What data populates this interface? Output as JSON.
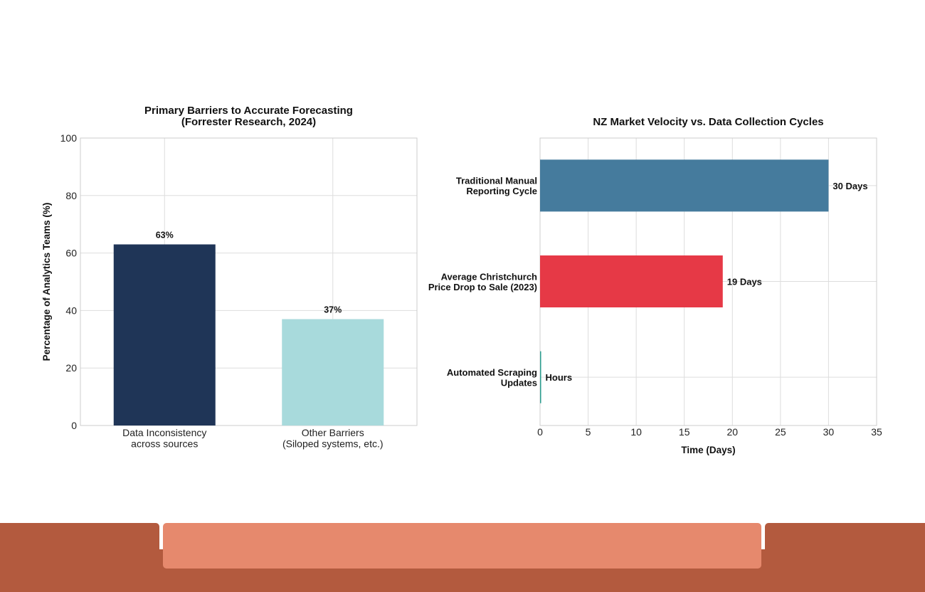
{
  "colors": {
    "bar_dark_navy": "#1f3557",
    "bar_light_teal": "#a8dadc",
    "bar_steel_blue": "#457b9d",
    "bar_red": "#e63946",
    "bar_hours": "#2a9d8f",
    "footer_dark": "#b35a3e",
    "footer_light": "#e6896d"
  },
  "chart_data": [
    {
      "type": "bar",
      "title": "Primary Barriers to Accurate Forecasting",
      "subtitle": "(Forrester Research, 2024)",
      "xlabel": "",
      "ylabel": "Percentage of Analytics Teams (%)",
      "categories": [
        [
          "Data Inconsistency",
          "across sources"
        ],
        [
          "Other Barriers",
          "(Siloped systems, etc.)"
        ]
      ],
      "values": [
        63,
        37
      ],
      "data_labels": [
        "63%",
        "37%"
      ],
      "ylim": [
        0,
        100
      ],
      "yticks": [
        0,
        20,
        40,
        60,
        80,
        100
      ],
      "grid": true
    },
    {
      "type": "bar",
      "orientation": "horizontal",
      "title": "NZ Market Velocity vs. Data Collection Cycles",
      "xlabel": "Time (Days)",
      "ylabel": "",
      "categories": [
        [
          "Traditional Manual",
          "Reporting Cycle"
        ],
        [
          "Average Christchurch",
          "Price Drop to Sale (2023)"
        ],
        [
          "Automated Scraping",
          "Updates"
        ]
      ],
      "values": [
        30,
        19,
        0.1
      ],
      "data_labels": [
        "30 Days",
        "19 Days",
        "Hours"
      ],
      "xlim": [
        0,
        35
      ],
      "xticks": [
        0,
        5,
        10,
        15,
        20,
        25,
        30,
        35
      ],
      "grid": true
    }
  ]
}
